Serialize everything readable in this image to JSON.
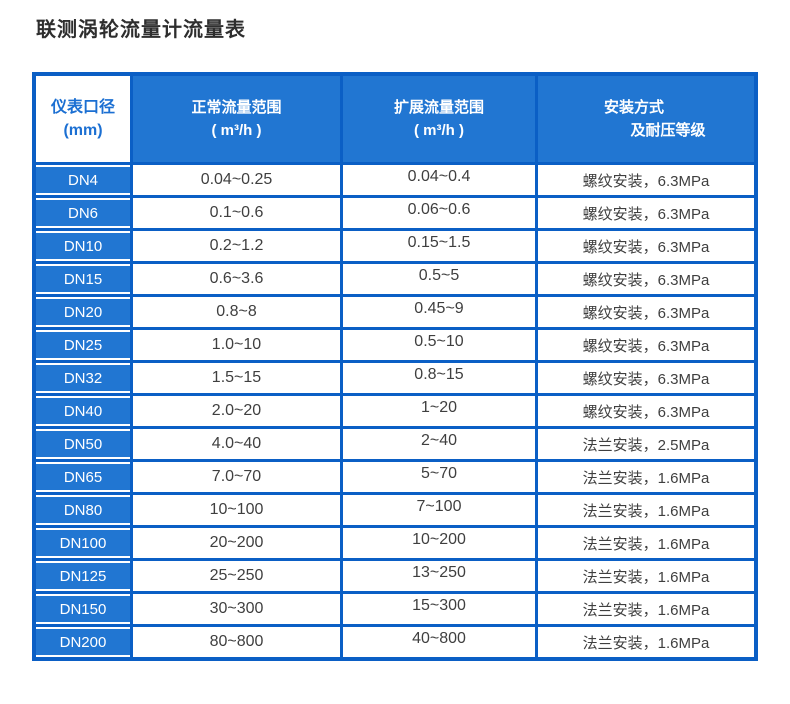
{
  "page": {
    "title": "联测涡轮流量计流量表"
  },
  "table": {
    "headers": [
      {
        "line1": "仪表口径",
        "line2": "(mm)"
      },
      {
        "line1": "正常流量范围",
        "line2": "( m³/h )"
      },
      {
        "line1": "扩展流量范围",
        "line2": "( m³/h )"
      },
      {
        "line1": "安装方式",
        "line2": "及耐压等级"
      }
    ],
    "rows": [
      {
        "dn": "DN4",
        "normal": "0.04~0.25",
        "extended": "0.04~0.4",
        "install": "螺纹安装，6.3MPa"
      },
      {
        "dn": "DN6",
        "normal": "0.1~0.6",
        "extended": "0.06~0.6",
        "install": "螺纹安装，6.3MPa"
      },
      {
        "dn": "DN10",
        "normal": "0.2~1.2",
        "extended": "0.15~1.5",
        "install": "螺纹安装，6.3MPa"
      },
      {
        "dn": "DN15",
        "normal": "0.6~3.6",
        "extended": "0.5~5",
        "install": "螺纹安装，6.3MPa"
      },
      {
        "dn": "DN20",
        "normal": "0.8~8",
        "extended": "0.45~9",
        "install": "螺纹安装，6.3MPa"
      },
      {
        "dn": "DN25",
        "normal": "1.0~10",
        "extended": "0.5~10",
        "install": "螺纹安装，6.3MPa"
      },
      {
        "dn": "DN32",
        "normal": "1.5~15",
        "extended": "0.8~15",
        "install": "螺纹安装，6.3MPa"
      },
      {
        "dn": "DN40",
        "normal": "2.0~20",
        "extended": "1~20",
        "install": "螺纹安装，6.3MPa"
      },
      {
        "dn": "DN50",
        "normal": "4.0~40",
        "extended": "2~40",
        "install": "法兰安装，2.5MPa"
      },
      {
        "dn": "DN65",
        "normal": "7.0~70",
        "extended": "5~70",
        "install": "法兰安装，1.6MPa"
      },
      {
        "dn": "DN80",
        "normal": "10~100",
        "extended": "7~100",
        "install": "法兰安装，1.6MPa"
      },
      {
        "dn": "DN100",
        "normal": "20~200",
        "extended": "10~200",
        "install": "法兰安装，1.6MPa"
      },
      {
        "dn": "DN125",
        "normal": "25~250",
        "extended": "13~250",
        "install": "法兰安装，1.6MPa"
      },
      {
        "dn": "DN150",
        "normal": "30~300",
        "extended": "15~300",
        "install": "法兰安装，1.6MPa"
      },
      {
        "dn": "DN200",
        "normal": "80~800",
        "extended": "40~800",
        "install": "法兰安装，1.6MPa"
      }
    ]
  },
  "colors": {
    "grid_border_blue": "#0b5fc5",
    "cell_fill_blue": "#2176d2",
    "header_text_on_white": "#1b6fd2",
    "data_text": "#3f3f3f",
    "title_text": "#2e2e2e"
  }
}
